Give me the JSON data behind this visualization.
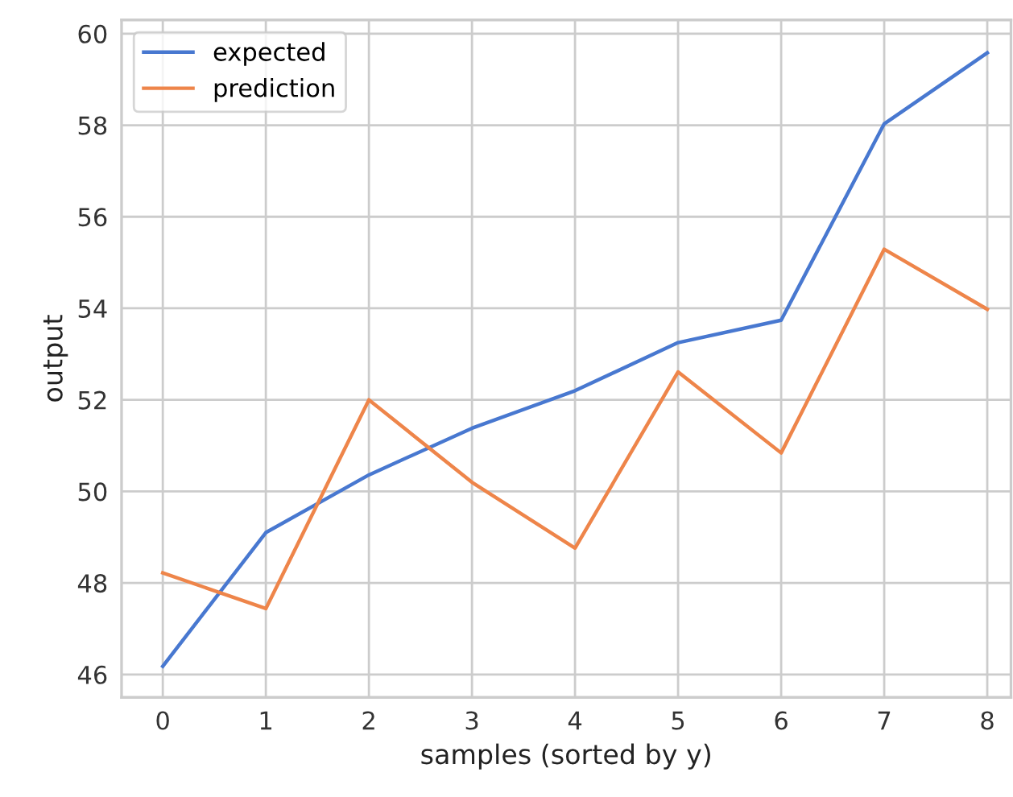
{
  "chart_data": {
    "type": "line",
    "xlabel": "samples (sorted by y)",
    "ylabel": "output",
    "x": [
      0,
      1,
      2,
      3,
      4,
      5,
      6,
      7,
      8
    ],
    "series": [
      {
        "name": "expected",
        "color": "#4878d0",
        "values": [
          46.18,
          49.1,
          50.36,
          51.38,
          52.2,
          53.25,
          53.74,
          58.03,
          59.58
        ]
      },
      {
        "name": "prediction",
        "color": "#ee854a",
        "values": [
          48.22,
          47.44,
          52.0,
          50.2,
          48.76,
          52.61,
          50.84,
          55.29,
          53.98
        ]
      }
    ],
    "xlim": [
      -0.4,
      8.23
    ],
    "ylim": [
      45.5,
      60.3
    ],
    "xticks": [
      0,
      1,
      2,
      3,
      4,
      5,
      6,
      7,
      8
    ],
    "yticks": [
      46,
      48,
      50,
      52,
      54,
      56,
      58,
      60
    ],
    "grid": true,
    "legend": "top left"
  }
}
